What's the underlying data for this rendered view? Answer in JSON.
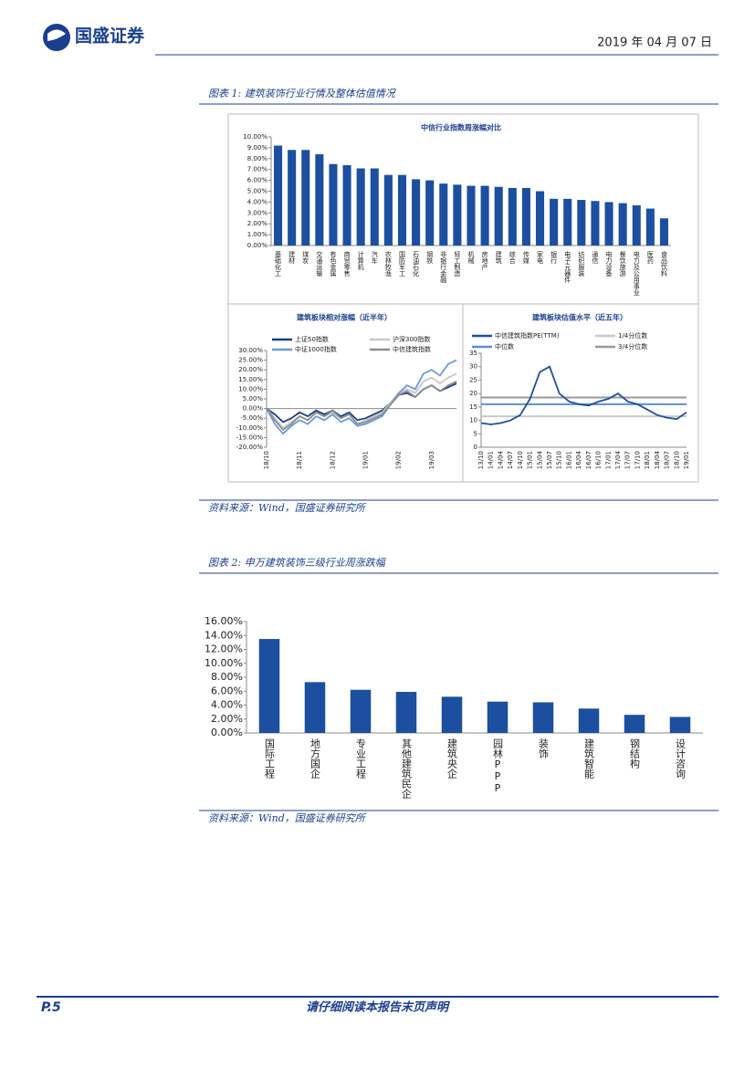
{
  "header": {
    "logo_text": "国盛证券",
    "date": "2019 年 04 月 07 日"
  },
  "figure1": {
    "caption": "图表 1: 建筑装饰行业行情及整体估值情况",
    "source": "资料来源：Wind，国盛证券研究所"
  },
  "figure2": {
    "caption": "图表 2: 申万建筑装饰三级行业周涨跌幅",
    "source": "资料来源：Wind，国盛证券研究所"
  },
  "footer": {
    "page": "P.5",
    "notice": "请仔细阅读本报告末页声明"
  },
  "chart_data": [
    {
      "type": "bar",
      "title": "中信行业指数周涨幅对比",
      "color": "#1c4f9f",
      "categories": [
        "基础化工",
        "建材",
        "煤炭",
        "交通运输",
        "有色金属",
        "商贸零售",
        "计算机",
        "汽车",
        "农林牧渔",
        "国防军工",
        "石油石化",
        "钢铁",
        "非银行金融",
        "轻工制造",
        "机械",
        "房地产",
        "建筑",
        "综合",
        "传媒",
        "家电",
        "银行",
        "电子元器件",
        "纺织服装",
        "通信",
        "电力设备",
        "餐饮旅游",
        "电力及公用事业",
        "医药",
        "食品饮料"
      ],
      "values": [
        9.2,
        8.8,
        8.8,
        8.4,
        7.5,
        7.4,
        7.1,
        7.1,
        6.5,
        6.5,
        6.1,
        6.0,
        5.7,
        5.6,
        5.5,
        5.5,
        5.4,
        5.3,
        5.3,
        5.0,
        4.3,
        4.3,
        4.2,
        4.1,
        4.0,
        3.9,
        3.7,
        3.4,
        2.5
      ],
      "ylim": [
        0,
        10
      ],
      "yticks": [
        {
          "value": 0,
          "label": "0.00%"
        },
        {
          "value": 1,
          "label": "1.00%"
        },
        {
          "value": 2,
          "label": "2.00%"
        },
        {
          "value": 3,
          "label": "3.00%"
        },
        {
          "value": 4,
          "label": "4.00%"
        },
        {
          "value": 5,
          "label": "5.00%"
        },
        {
          "value": 6,
          "label": "6.00%"
        },
        {
          "value": 7,
          "label": "7.00%"
        },
        {
          "value": 8,
          "label": "8.00%"
        },
        {
          "value": 9,
          "label": "9.00%"
        },
        {
          "value": 10,
          "label": "10.00%"
        }
      ]
    },
    {
      "type": "line",
      "title": "建筑板块相对涨幅（近半年）",
      "categories": [
        "18/10",
        null,
        null,
        null,
        "18/11",
        null,
        null,
        null,
        "18/12",
        null,
        null,
        null,
        "19/01",
        null,
        null,
        null,
        "19/02",
        null,
        null,
        null,
        "19/03",
        null,
        null,
        null
      ],
      "series": [
        {
          "name": "上证50指数",
          "color": "#1b3f80",
          "values": [
            0,
            -3,
            -7,
            -5,
            -2,
            -4,
            -1,
            -3,
            -1,
            -4,
            -2,
            -6,
            -5,
            -3,
            -1,
            3,
            7,
            8,
            6,
            10,
            12,
            9,
            11,
            13
          ]
        },
        {
          "name": "沪深300指数",
          "color": "#c8c8c8",
          "values": [
            0,
            -5,
            -10,
            -7,
            -4,
            -6,
            -2,
            -4,
            -2,
            -5,
            -3,
            -8,
            -6,
            -4,
            -2,
            3,
            8,
            10,
            8,
            14,
            16,
            13,
            16,
            18
          ]
        },
        {
          "name": "中证1000指数",
          "color": "#6b9bd6",
          "values": [
            0,
            -8,
            -13,
            -9,
            -6,
            -8,
            -4,
            -6,
            -3,
            -7,
            -5,
            -9,
            -8,
            -6,
            -4,
            2,
            8,
            12,
            10,
            18,
            20,
            17,
            23,
            25
          ]
        },
        {
          "name": "中信建筑指数",
          "color": "#8c8c8c",
          "values": [
            0,
            -6,
            -11,
            -8,
            -4,
            -6,
            -2,
            -4,
            -1,
            -5,
            -3,
            -8,
            -7,
            -5,
            -3,
            2,
            7,
            9,
            6,
            10,
            12,
            9,
            12,
            14
          ]
        }
      ],
      "ylim": [
        -20,
        30
      ],
      "yticks": [
        {
          "value": -20,
          "label": "-20.00%"
        },
        {
          "value": -15,
          "label": "-15.00%"
        },
        {
          "value": -10,
          "label": "-10.00%"
        },
        {
          "value": -5,
          "label": "-5.00%"
        },
        {
          "value": 0,
          "label": "0.00%"
        },
        {
          "value": 5,
          "label": "5.00%"
        },
        {
          "value": 10,
          "label": "10.00%"
        },
        {
          "value": 15,
          "label": "15.00%"
        },
        {
          "value": 20,
          "label": "20.00%"
        },
        {
          "value": 25,
          "label": "25.00%"
        },
        {
          "value": 30,
          "label": "30.00%"
        }
      ]
    },
    {
      "type": "line",
      "title": "建筑板块估值水平（近五年）",
      "categories": [
        "13/10",
        "14/01",
        "14/04",
        "14/07",
        "14/10",
        "15/01",
        "15/04",
        "15/07",
        "15/10",
        "16/01",
        "16/04",
        "16/07",
        "16/10",
        "17/01",
        "17/04",
        "17/07",
        "17/10",
        "18/01",
        "18/04",
        "18/07",
        "18/10",
        "19/01"
      ],
      "series": [
        {
          "name": "中信建筑指数PE(TTM)",
          "color": "#1c4f9f",
          "values": [
            9,
            8.5,
            9,
            10,
            12,
            18,
            28,
            30,
            20,
            17,
            16,
            15.5,
            17,
            18,
            20,
            17,
            16,
            14,
            12,
            11,
            10.5,
            13
          ]
        }
      ],
      "reference_lines": [
        {
          "name": "1/4分位数",
          "color": "#c8c8c8",
          "value": 11.5
        },
        {
          "name": "中位数",
          "color": "#5b8fd0",
          "value": 16
        },
        {
          "name": "3/4分位数",
          "color": "#999999",
          "value": 18.5
        }
      ],
      "ylim": [
        0,
        35
      ],
      "yticks": [
        0,
        5,
        10,
        15,
        20,
        25,
        30,
        35
      ]
    },
    {
      "type": "bar",
      "color": "#1c4f9f",
      "categories": [
        "国际工程",
        "地方国企",
        "专业工程",
        "其他建筑民企",
        "建筑央企",
        "园林PPP",
        "装饰",
        "建筑智能",
        "钢结构",
        "设计咨询"
      ],
      "values": [
        13.5,
        7.3,
        6.2,
        5.9,
        5.2,
        4.5,
        4.4,
        3.5,
        2.6,
        2.3
      ],
      "ylim": [
        0,
        16
      ],
      "yticks": [
        {
          "value": 0,
          "label": "0.00%"
        },
        {
          "value": 2,
          "label": "2.00%"
        },
        {
          "value": 4,
          "label": "4.00%"
        },
        {
          "value": 6,
          "label": "6.00%"
        },
        {
          "value": 8,
          "label": "8.00%"
        },
        {
          "value": 10,
          "label": "10.00%"
        },
        {
          "value": 12,
          "label": "12.00%"
        },
        {
          "value": 14,
          "label": "14.00%"
        },
        {
          "value": 16,
          "label": "16.00%"
        }
      ]
    }
  ]
}
